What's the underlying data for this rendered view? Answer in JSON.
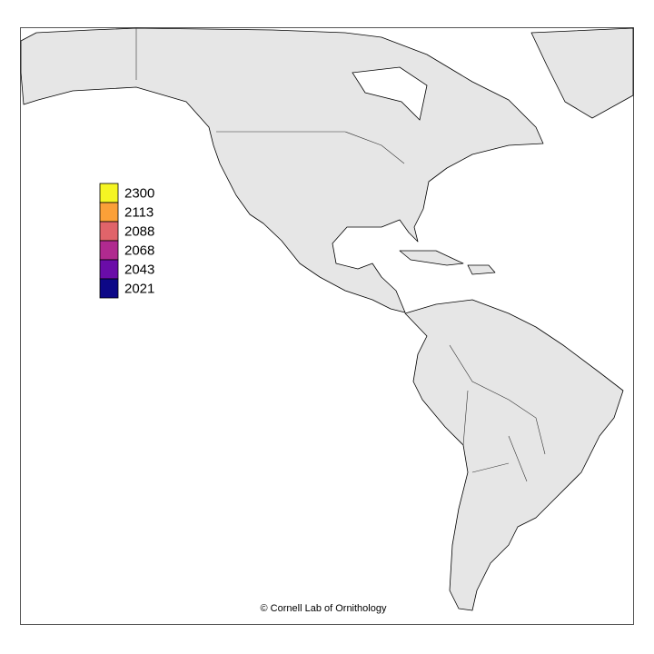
{
  "legend": {
    "items": [
      {
        "label": "2300",
        "color": "#f5f523"
      },
      {
        "label": "2113",
        "color": "#fba038"
      },
      {
        "label": "2088",
        "color": "#e0646a"
      },
      {
        "label": "2068",
        "color": "#b02a8f"
      },
      {
        "label": "2043",
        "color": "#6a0ca8"
      },
      {
        "label": "2021",
        "color": "#0d0887"
      }
    ]
  },
  "credit": "© Cornell Lab of Ornithology"
}
